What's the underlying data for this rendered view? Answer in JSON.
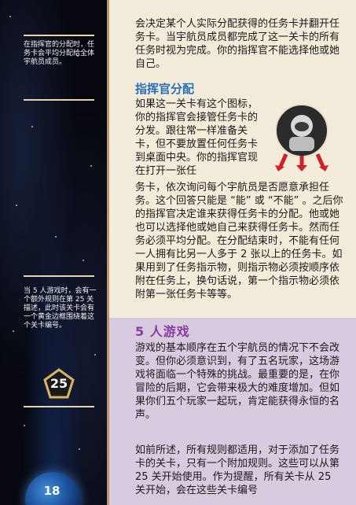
{
  "sidebar": {
    "note_top": "在指挥官的分配时，任务卡会平均分配给全体宇航员成员。",
    "note_bottom": "当 5 人游戏时，会有一个额外规则在第 25 关描述，此时该关卡会有一个黄金边框围绕着这个关卡编号。",
    "badge_number": "25",
    "page_number": "18"
  },
  "main": {
    "para_intro": "会决定某个人实际分配获得的任务卡并翻开任务卡。当宇航员成员都完成了这一关卡的所有任务时视为完成。你的指挥官不能选择他或她自己。",
    "section_commander": {
      "heading": "指挥官分配",
      "para_narrow": "如果这一关卡有这个图标，你的指挥官会接管任务卡的分发。跟往常一样准备关卡，但不要放置任何任务卡到桌面中央。你的指挥官现在打开一张任",
      "para_wide": "务卡，依次询问每个宇航员是否愿意承担任务。这个回答只能是 “能” 或 “不能” 。之后你的指挥官决定谁来获得任务卡的分配。他或她也可以选择他或她自己来获得任务卡。然而任务必须平均分配。在分配结束时，不能有任何一人拥有比另一人多于 2 张以上的任务卡。如果用到了任务指示物，则指示物必须按顺序依附在任务上，换句话说，第一个指示物必须依附第一张任务卡等等。"
    },
    "section_five": {
      "heading": "5 人游戏",
      "para1": "游戏的基本顺序在五个宇航员的情况下不会改变。但你必须意识到，有了五名玩家，这场游戏将面临一个特殊的挑战。最重要的是，在你冒险的后期，它会带来极大的难度增加。但如果你们五个玩家一起玩，肯定能获得永恒的名声。",
      "para2": "如前所述，所有规则都适用，对于添加了任务卡的关卡，只有一个附加规则。这些可以从第 25 关开始使用。作为提醒，所有关卡从 25 关开始，会在这些关卡编号"
    }
  },
  "colors": {
    "heading_blue": "#2a6fb8",
    "heading_purple": "#8a3aa0",
    "panel_top": "#f3ecdb",
    "panel_bottom": "#d9cbdf",
    "arrow_red": "#d21f2a"
  }
}
